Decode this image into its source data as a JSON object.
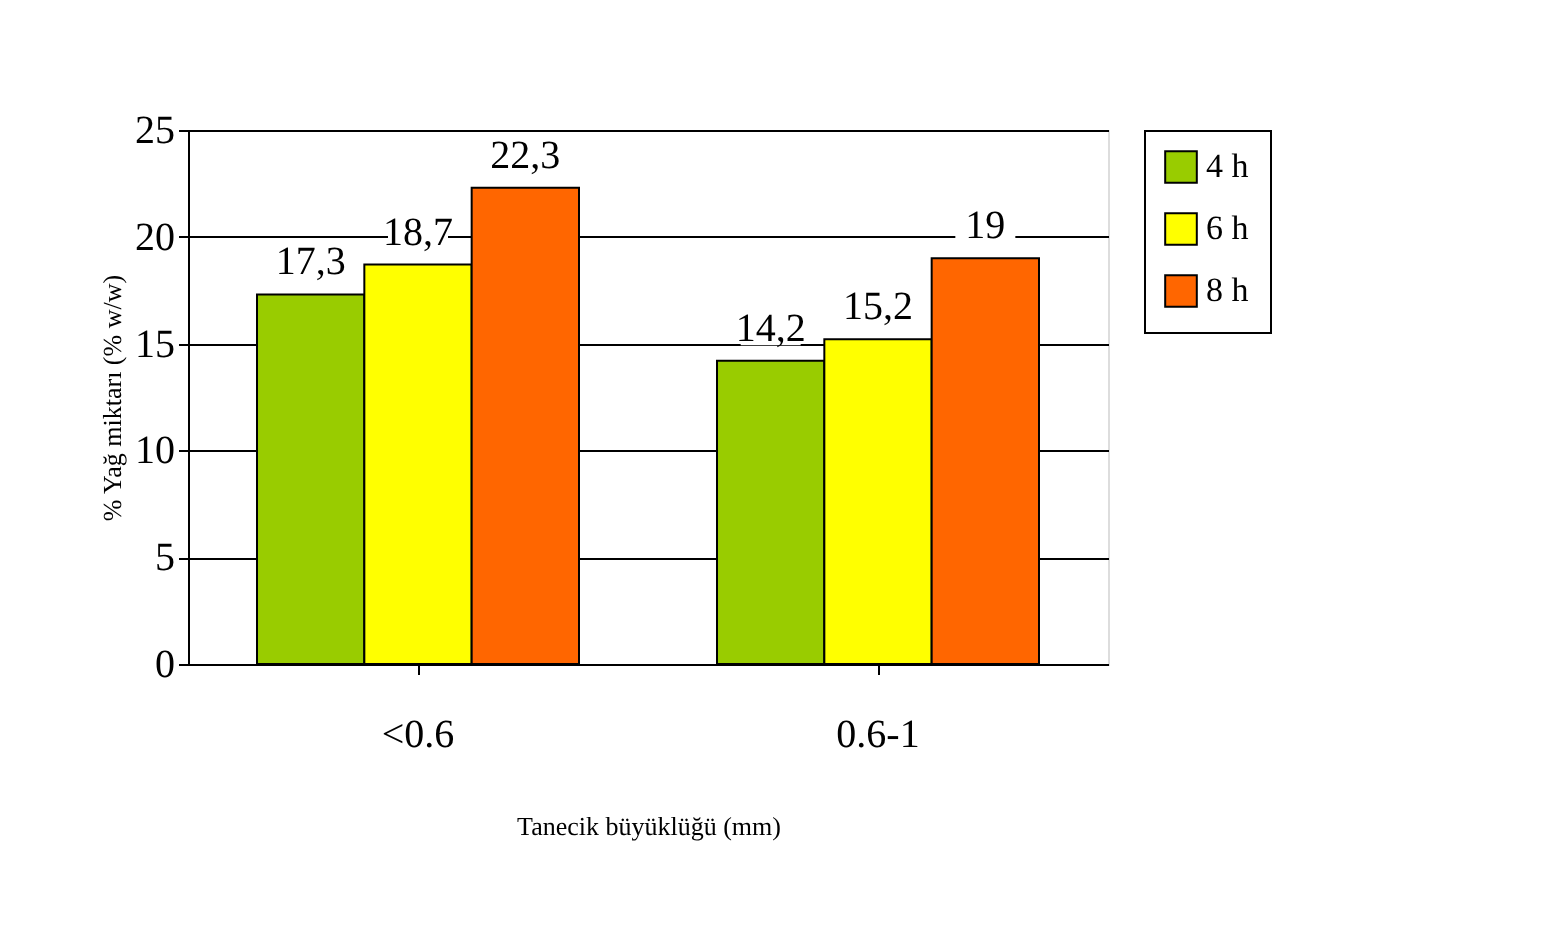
{
  "chart_data": {
    "type": "bar",
    "xlabel": "Tanecik büyüklüğü (mm)",
    "ylabel": "% Yağ miktarı (% w/w)",
    "categories": [
      "<0.6",
      "0.6-1"
    ],
    "series": [
      {
        "name": "4 h",
        "color": "#99cc00",
        "values": [
          17.3,
          14.2
        ],
        "value_labels": [
          "17,3",
          "14,2"
        ]
      },
      {
        "name": "6 h",
        "color": "#ffff00",
        "values": [
          18.7,
          15.2
        ],
        "value_labels": [
          "18,7",
          "15,2"
        ]
      },
      {
        "name": "8 h",
        "color": "#ff6600",
        "values": [
          22.3,
          19
        ],
        "value_labels": [
          "22,3",
          "19"
        ]
      }
    ],
    "ylim": [
      0,
      25
    ],
    "yticks": [
      0,
      5,
      10,
      15,
      20,
      25
    ],
    "grid": "y",
    "legend": "right"
  }
}
